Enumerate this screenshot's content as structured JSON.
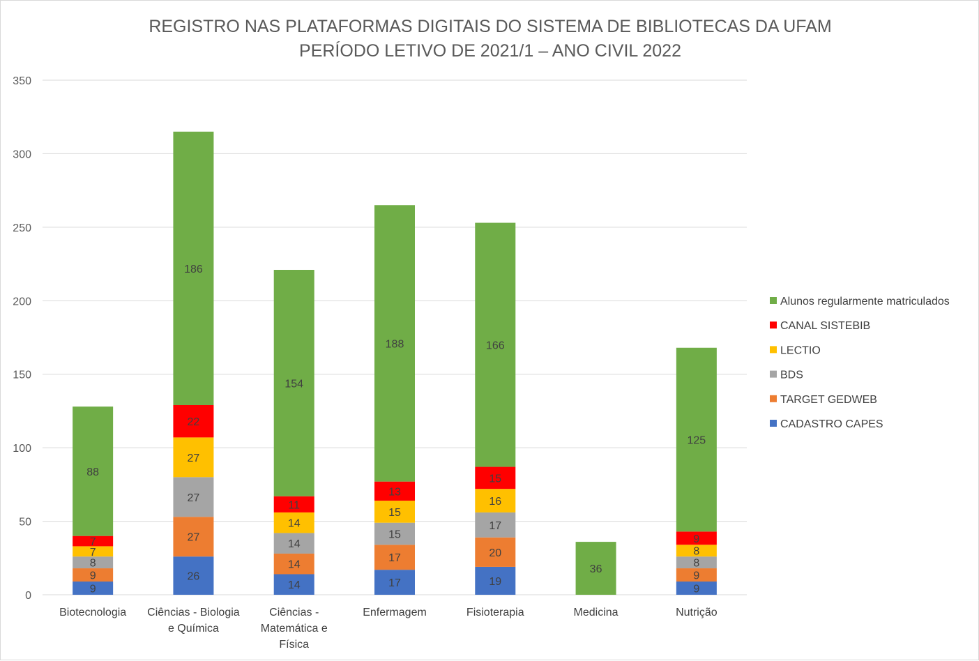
{
  "chart_data": {
    "type": "bar",
    "stacked": true,
    "title": [
      "REGISTRO NAS PLATAFORMAS DIGITAIS DO SISTEMA DE BIBLIOTECAS DA UFAM",
      "PERÍODO LETIVO DE 2021/1 – ANO CIVIL 2022"
    ],
    "categories": [
      [
        "Biotecnologia"
      ],
      [
        "Ciências - Biologia",
        "e Química"
      ],
      [
        "Ciências -",
        "Matemática e",
        "Física"
      ],
      [
        "Enfermagem"
      ],
      [
        "Fisioterapia"
      ],
      [
        "Medicina"
      ],
      [
        "Nutrição"
      ]
    ],
    "ylim": [
      0,
      350
    ],
    "yticks": [
      0,
      50,
      100,
      150,
      200,
      250,
      300,
      350
    ],
    "grid": true,
    "legend_position": "right",
    "series": [
      {
        "name": "CADASTRO CAPES",
        "color": "#4472c4",
        "values": [
          9,
          26,
          14,
          17,
          19,
          null,
          9
        ]
      },
      {
        "name": "TARGET GEDWEB",
        "color": "#ed7d31",
        "values": [
          9,
          27,
          14,
          17,
          20,
          null,
          9
        ]
      },
      {
        "name": "BDS",
        "color": "#a5a5a5",
        "values": [
          8,
          27,
          14,
          15,
          17,
          null,
          8
        ]
      },
      {
        "name": "LECTIO",
        "color": "#ffc000",
        "values": [
          7,
          27,
          14,
          15,
          16,
          null,
          8
        ]
      },
      {
        "name": "CANAL SISTEBIB",
        "color": "#ff0000",
        "values": [
          7,
          22,
          11,
          13,
          15,
          null,
          9
        ]
      },
      {
        "name": "Alunos regularmente matriculados",
        "color": "#70ad47",
        "values": [
          88,
          186,
          154,
          188,
          166,
          36,
          125
        ]
      }
    ]
  }
}
